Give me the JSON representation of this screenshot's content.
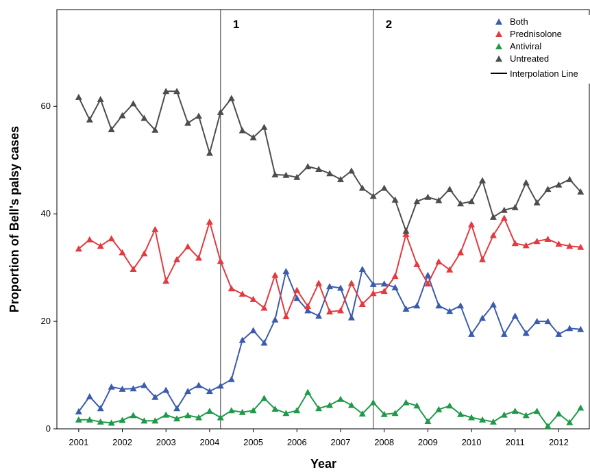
{
  "chart_data": {
    "type": "line",
    "title": "",
    "xlabel": "Year",
    "ylabel": "Proportion of Bell's palsy cases",
    "xlim": [
      2000.5,
      2012.7
    ],
    "ylim": [
      0,
      78
    ],
    "xticks": [
      "2001",
      "2002",
      "2003",
      "2004",
      "2005",
      "2006",
      "2007",
      "2008",
      "2009",
      "2010",
      "2011",
      "2012"
    ],
    "yticks": [
      "0",
      "20",
      "40",
      "60"
    ],
    "x_start": 2001.0,
    "x_step": 0.25,
    "interpolation_lines": [
      {
        "label": "1",
        "x": 2004.25
      },
      {
        "label": "2",
        "x": 2007.75
      }
    ],
    "legend_position": "top-right",
    "series": [
      {
        "name": "Both",
        "color": "#3b5bad",
        "values": [
          3.2,
          6.0,
          3.8,
          7.8,
          7.4,
          7.5,
          8.1,
          5.9,
          7.2,
          3.8,
          7.0,
          8.1,
          7.0,
          8.0,
          9.2,
          16.5,
          18.3,
          16.0,
          20.3,
          29.3,
          24.3,
          22.0,
          21.0,
          26.5,
          26.2,
          20.7,
          29.7,
          26.9,
          27.0,
          26.3,
          22.3,
          22.9,
          28.6,
          22.9,
          21.9,
          22.9,
          17.6,
          20.6,
          23.1,
          17.6,
          21.0,
          17.8,
          20.0,
          20.0,
          17.6,
          18.7,
          18.5
        ]
      },
      {
        "name": "Prednisolone",
        "color": "#e23a3f",
        "values": [
          33.5,
          35.2,
          34.0,
          35.4,
          32.8,
          29.7,
          32.6,
          37.1,
          27.5,
          31.5,
          33.9,
          31.8,
          38.5,
          31.2,
          26.1,
          25.1,
          24.1,
          22.5,
          28.6,
          20.9,
          25.8,
          22.8,
          27.1,
          21.8,
          22.0,
          27.1,
          23.2,
          25.2,
          25.6,
          28.4,
          36.2,
          30.6,
          27.0,
          31.1,
          29.6,
          32.8,
          38.0,
          31.5,
          36.0,
          39.2,
          34.5,
          34.1,
          34.9,
          35.3,
          34.4,
          34.0,
          33.8
        ]
      },
      {
        "name": "Antiviral",
        "color": "#1f9a48",
        "values": [
          1.7,
          1.7,
          1.3,
          1.1,
          1.6,
          2.5,
          1.5,
          1.5,
          2.6,
          1.9,
          2.5,
          2.1,
          3.3,
          2.1,
          3.4,
          3.1,
          3.4,
          5.7,
          3.7,
          2.9,
          3.4,
          6.8,
          3.8,
          4.4,
          5.5,
          4.4,
          2.8,
          4.9,
          2.7,
          2.9,
          4.9,
          4.3,
          1.4,
          3.6,
          4.3,
          2.7,
          2.1,
          1.7,
          1.3,
          2.6,
          3.3,
          2.5,
          3.3,
          0.5,
          2.8,
          1.2,
          3.9
        ]
      },
      {
        "name": "Untreated",
        "color": "#4d4d4d",
        "values": [
          61.7,
          57.5,
          61.3,
          55.7,
          58.3,
          60.5,
          57.8,
          55.6,
          62.8,
          62.8,
          56.9,
          58.2,
          51.3,
          58.9,
          61.5,
          55.5,
          54.2,
          56.1,
          47.3,
          47.2,
          46.8,
          48.8,
          48.3,
          47.5,
          46.4,
          48.0,
          44.8,
          43.3,
          44.8,
          42.6,
          36.8,
          42.3,
          43.1,
          42.5,
          44.6,
          41.9,
          42.3,
          46.2,
          39.4,
          40.7,
          41.2,
          45.8,
          42.1,
          44.6,
          45.4,
          46.4,
          44.1
        ]
      }
    ]
  },
  "legend": {
    "items": [
      {
        "label": "Both",
        "color": "#3b5bad"
      },
      {
        "label": "Prednisolone",
        "color": "#e23a3f"
      },
      {
        "label": "Antiviral",
        "color": "#1f9a48"
      },
      {
        "label": "Untreated",
        "color": "#4d4d4d"
      }
    ],
    "line_label": "Interpolation Line"
  }
}
